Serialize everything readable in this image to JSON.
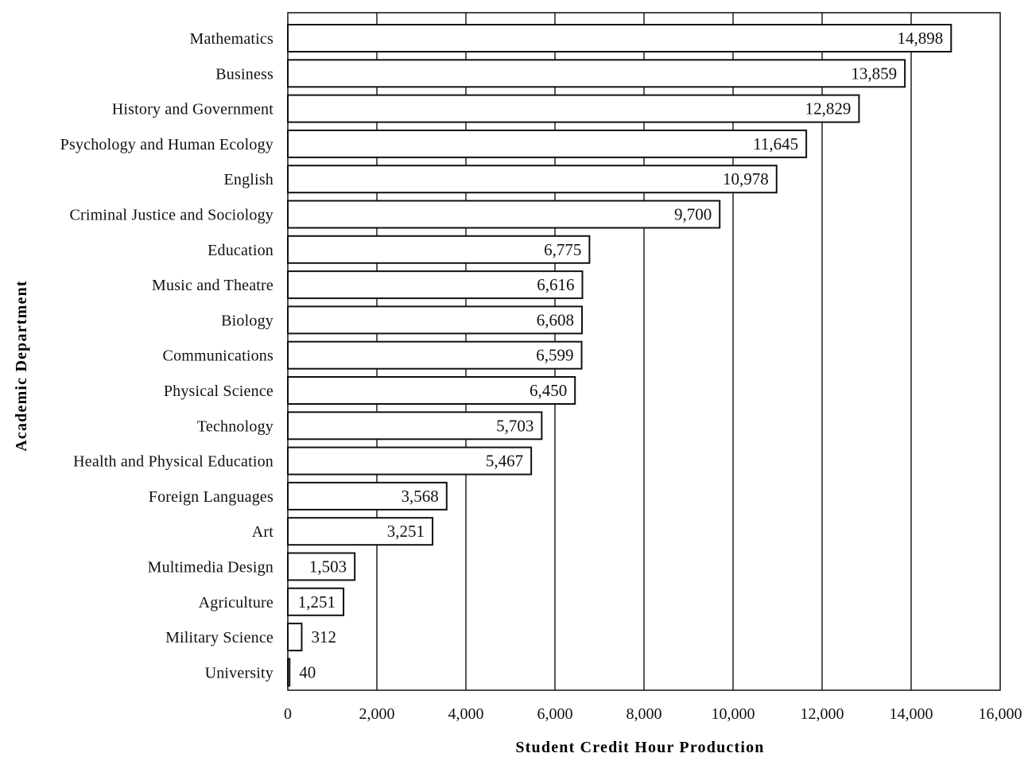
{
  "chart_data": {
    "type": "bar",
    "orientation": "horizontal",
    "categories": [
      "Mathematics",
      "Business",
      "History and Government",
      "Psychology and Human Ecology",
      "English",
      "Criminal Justice and Sociology",
      "Education",
      "Music and Theatre",
      "Biology",
      "Communications",
      "Physical Science",
      "Technology",
      "Health and Physical Education",
      "Foreign Languages",
      "Art",
      "Multimedia Design",
      "Agriculture",
      "Military Science",
      "University"
    ],
    "values": [
      14898,
      13859,
      12829,
      11645,
      10978,
      9700,
      6775,
      6616,
      6608,
      6599,
      6450,
      5703,
      5467,
      3568,
      3251,
      1503,
      1251,
      312,
      40
    ],
    "value_labels": [
      "14,898",
      "13,859",
      "12,829",
      "11,645",
      "10,978",
      "9,700",
      "6,775",
      "6,616",
      "6,608",
      "6,599",
      "6,450",
      "5,703",
      "5,467",
      "3,568",
      "3,251",
      "1,503",
      "1,251",
      "312",
      "40"
    ],
    "xlabel": "Student Credit Hour Production",
    "ylabel": "Academic Department",
    "xlim": [
      0,
      16000
    ],
    "x_ticks": [
      0,
      2000,
      4000,
      6000,
      8000,
      10000,
      12000,
      14000,
      16000
    ],
    "x_tick_labels": [
      "0",
      "2,000",
      "4,000",
      "6,000",
      "8,000",
      "10,000",
      "12,000",
      "14,000",
      "16,000"
    ],
    "grid": "vertical",
    "colors": {
      "bar_fill": "#ffffff",
      "bar_stroke": "#111111",
      "grid": "#111111",
      "text": "#111111"
    }
  }
}
